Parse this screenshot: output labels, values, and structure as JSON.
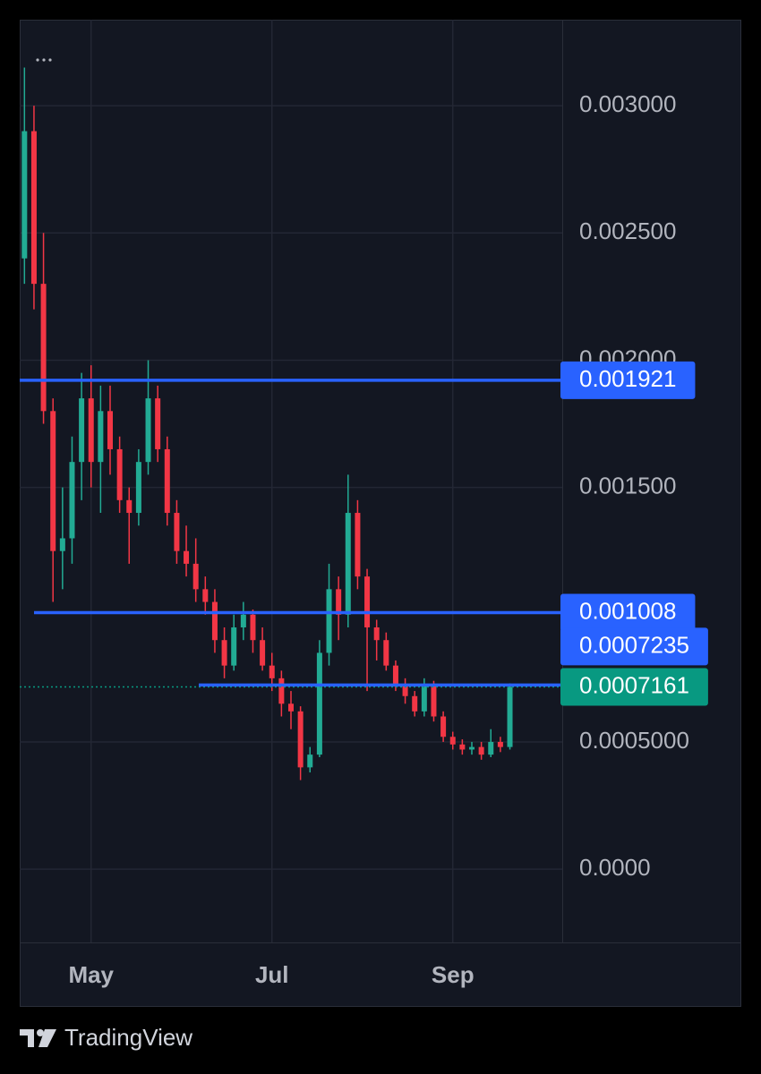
{
  "chart_data": {
    "type": "candlestick",
    "source": "TradingView",
    "categories": [
      null,
      null,
      null,
      null,
      null,
      null,
      null,
      "May",
      null,
      null,
      null,
      null,
      null,
      null,
      null,
      null,
      null,
      null,
      null,
      null,
      null,
      null,
      null,
      null,
      null,
      null,
      "Jul",
      null,
      null,
      null,
      null,
      null,
      null,
      null,
      null,
      null,
      null,
      null,
      null,
      null,
      null,
      null,
      null,
      null,
      null,
      "Sep",
      null,
      null,
      null,
      null,
      null,
      null,
      null,
      null,
      null,
      null,
      null
    ],
    "open": [
      0.0024,
      0.0029,
      0.0023,
      0.0018,
      0.00125,
      0.0013,
      0.0016,
      0.00185,
      0.0016,
      0.0018,
      0.00165,
      0.00145,
      0.0014,
      0.0016,
      0.00185,
      0.00165,
      0.0014,
      0.00125,
      0.0012,
      0.0011,
      0.00105,
      0.0009,
      0.0008,
      0.00095,
      0.001,
      0.0009,
      0.0008,
      0.00075,
      0.00065,
      0.00062,
      0.0004,
      0.00045,
      0.00085,
      0.0011,
      0.001,
      0.0014,
      0.00115,
      0.00095,
      0.0009,
      0.0008,
      0.00072,
      0.00068,
      0.00062,
      0.00072,
      0.0006,
      0.00052,
      0.00049,
      0.00047,
      0.00048,
      0.00045,
      0.0005,
      0.00048,
      null,
      null,
      null,
      null,
      null
    ],
    "high": [
      0.00315,
      0.003,
      0.0025,
      0.00185,
      0.0015,
      0.0017,
      0.00195,
      0.00198,
      0.0019,
      0.0019,
      0.0017,
      0.0015,
      0.00165,
      0.002,
      0.0019,
      0.0017,
      0.00145,
      0.00135,
      0.0013,
      0.00115,
      0.0011,
      0.00095,
      0.001,
      0.00105,
      0.00102,
      0.00095,
      0.00085,
      0.00078,
      0.0007,
      0.00064,
      0.00048,
      0.0009,
      0.0012,
      0.00115,
      0.00155,
      0.00145,
      0.00118,
      0.00098,
      0.00093,
      0.00082,
      0.00075,
      0.0007,
      0.00075,
      0.00074,
      0.00062,
      0.00054,
      0.00051,
      0.0005,
      0.0005,
      0.00055,
      0.00052,
      0.00073,
      null,
      null,
      null,
      null,
      null
    ],
    "low": [
      0.0023,
      0.0022,
      0.00175,
      0.00105,
      0.0011,
      0.0012,
      0.00145,
      0.0015,
      0.0014,
      0.00155,
      0.0014,
      0.0012,
      0.00135,
      0.00155,
      0.0016,
      0.00135,
      0.0012,
      0.00115,
      0.00105,
      0.001,
      0.00085,
      0.00075,
      0.00078,
      0.0009,
      0.00085,
      0.00078,
      0.0007,
      0.0006,
      0.00055,
      0.00035,
      0.00038,
      0.00044,
      0.0008,
      0.0009,
      0.00095,
      0.0011,
      0.0007,
      0.00082,
      0.00078,
      0.0007,
      0.00065,
      0.0006,
      0.0006,
      0.00058,
      0.0005,
      0.00047,
      0.00045,
      0.00045,
      0.00043,
      0.00044,
      0.00046,
      0.00047,
      null,
      null,
      null,
      null,
      null
    ],
    "close": [
      0.0029,
      0.0023,
      0.0018,
      0.00125,
      0.0013,
      0.0016,
      0.00185,
      0.0016,
      0.0018,
      0.00165,
      0.00145,
      0.0014,
      0.0016,
      0.00185,
      0.00165,
      0.0014,
      0.00125,
      0.0012,
      0.0011,
      0.00105,
      0.0009,
      0.0008,
      0.00095,
      0.001,
      0.0009,
      0.0008,
      0.00075,
      0.00065,
      0.00062,
      0.0004,
      0.00045,
      0.00085,
      0.0011,
      0.001,
      0.0014,
      0.00115,
      0.00095,
      0.0009,
      0.0008,
      0.00072,
      0.00068,
      0.00062,
      0.00072,
      0.0006,
      0.00052,
      0.00049,
      0.00047,
      0.00048,
      0.00045,
      0.0005,
      0.00048,
      0.0007161,
      null,
      null,
      null,
      null,
      null
    ],
    "up_color": "#22ab94",
    "down_color": "#f23645",
    "ylim": [
      -0.000288,
      0.003338
    ],
    "yticks": [
      {
        "value": 0,
        "label": "0.0000"
      },
      {
        "value": 0.0005,
        "label": "0.0005000"
      },
      {
        "value": 0.0015,
        "label": "0.001500"
      },
      {
        "value": 0.002,
        "label": "0.002000"
      },
      {
        "value": 0.0025,
        "label": "0.002500"
      },
      {
        "value": 0.003,
        "label": "0.003000"
      }
    ],
    "grid": true,
    "hlines": [
      0.001921,
      0.001008,
      0.0007235
    ],
    "hline_color": "#2962ff",
    "last_price_color": "#089981"
  }
}
